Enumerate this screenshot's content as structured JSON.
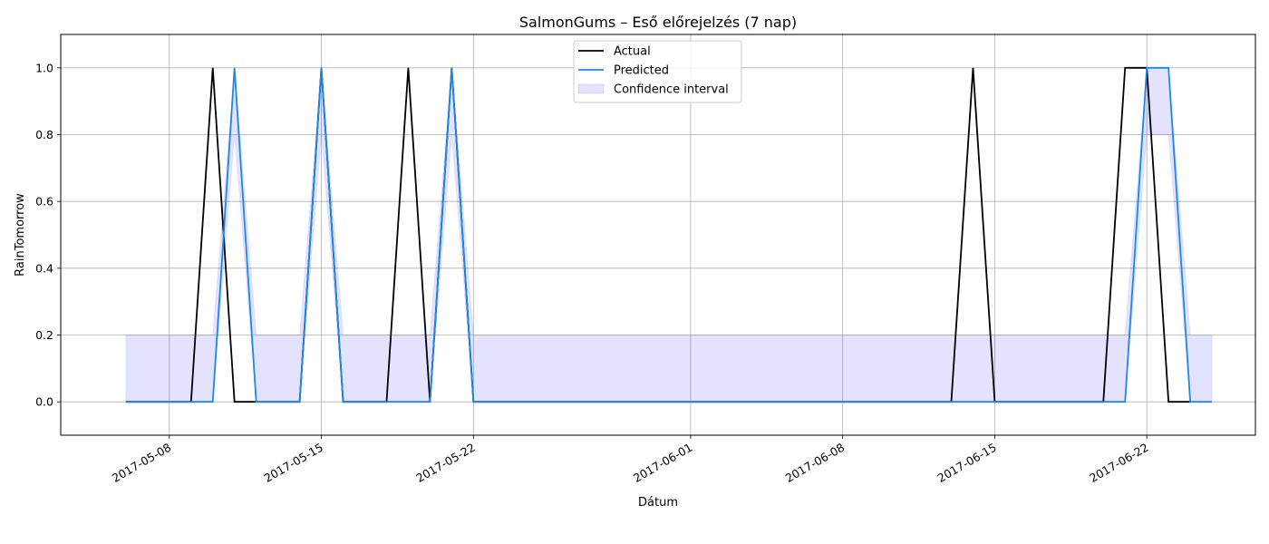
{
  "chart_data": {
    "type": "line",
    "title": "SalmonGums – Eső előrejelzés (7 nap)",
    "xlabel": "Dátum",
    "ylabel": "RainTomorrow",
    "x_axis": {
      "range": [
        "2017-05-03",
        "2017-06-27"
      ],
      "ticks": [
        "2017-05-08",
        "2017-05-15",
        "2017-05-22",
        "2017-06-01",
        "2017-06-08",
        "2017-06-15",
        "2017-06-22"
      ]
    },
    "y_axis": {
      "range": [
        -0.1,
        1.1
      ],
      "ticks": [
        0.0,
        0.2,
        0.4,
        0.6,
        0.8,
        1.0
      ],
      "tick_labels": [
        "0.0",
        "0.2",
        "0.4",
        "0.6",
        "0.8",
        "1.0"
      ]
    },
    "grid": true,
    "legend": {
      "position": "top-center"
    },
    "series": [
      {
        "name": "Actual",
        "kind": "line",
        "color": "#000000",
        "points": [
          {
            "x": "2017-05-06",
            "y": 0
          },
          {
            "x": "2017-05-07",
            "y": 0
          },
          {
            "x": "2017-05-08",
            "y": 0
          },
          {
            "x": "2017-05-09",
            "y": 0
          },
          {
            "x": "2017-05-10",
            "y": 1
          },
          {
            "x": "2017-05-11",
            "y": 0
          },
          {
            "x": "2017-05-12",
            "y": 0
          },
          {
            "x": "2017-05-13",
            "y": 0
          },
          {
            "x": "2017-05-14",
            "y": 0
          },
          {
            "x": "2017-05-15",
            "y": 1
          },
          {
            "x": "2017-05-16",
            "y": 0
          },
          {
            "x": "2017-05-17",
            "y": 0
          },
          {
            "x": "2017-05-18",
            "y": 0
          },
          {
            "x": "2017-05-19",
            "y": 1
          },
          {
            "x": "2017-05-20",
            "y": 0
          },
          {
            "x": "2017-05-21",
            "y": 1
          },
          {
            "x": "2017-05-22",
            "y": 0
          },
          {
            "x": "2017-06-12",
            "y": 0
          },
          {
            "x": "2017-06-13",
            "y": 0
          },
          {
            "x": "2017-06-14",
            "y": 1
          },
          {
            "x": "2017-06-15",
            "y": 0
          },
          {
            "x": "2017-06-19",
            "y": 0
          },
          {
            "x": "2017-06-20",
            "y": 0
          },
          {
            "x": "2017-06-21",
            "y": 1
          },
          {
            "x": "2017-06-22",
            "y": 1
          },
          {
            "x": "2017-06-23",
            "y": 0
          },
          {
            "x": "2017-06-24",
            "y": 0
          }
        ]
      },
      {
        "name": "Predicted",
        "kind": "line",
        "color": "#1e88e5",
        "points": [
          {
            "x": "2017-05-06",
            "y": 0
          },
          {
            "x": "2017-05-07",
            "y": 0
          },
          {
            "x": "2017-05-08",
            "y": 0
          },
          {
            "x": "2017-05-09",
            "y": 0
          },
          {
            "x": "2017-05-10",
            "y": 0
          },
          {
            "x": "2017-05-11",
            "y": 1
          },
          {
            "x": "2017-05-12",
            "y": 0
          },
          {
            "x": "2017-05-13",
            "y": 0
          },
          {
            "x": "2017-05-14",
            "y": 0
          },
          {
            "x": "2017-05-15",
            "y": 1
          },
          {
            "x": "2017-05-16",
            "y": 0
          },
          {
            "x": "2017-05-17",
            "y": 0
          },
          {
            "x": "2017-05-18",
            "y": 0
          },
          {
            "x": "2017-05-19",
            "y": 0
          },
          {
            "x": "2017-05-20",
            "y": 0
          },
          {
            "x": "2017-05-21",
            "y": 1
          },
          {
            "x": "2017-05-22",
            "y": 0
          },
          {
            "x": "2017-06-21",
            "y": 0
          },
          {
            "x": "2017-06-22",
            "y": 1
          },
          {
            "x": "2017-06-23",
            "y": 1
          },
          {
            "x": "2017-06-24",
            "y": 0
          },
          {
            "x": "2017-06-25",
            "y": 0
          }
        ]
      },
      {
        "name": "Confidence interval",
        "kind": "band",
        "color": "#0000ff",
        "opacity": 0.11,
        "points": [
          {
            "x": "2017-05-06",
            "lower": 0,
            "upper": 0.2
          },
          {
            "x": "2017-05-10",
            "lower": 0,
            "upper": 0.2
          },
          {
            "x": "2017-05-11",
            "lower": 0.8,
            "upper": 1
          },
          {
            "x": "2017-05-12",
            "lower": 0,
            "upper": 0.2
          },
          {
            "x": "2017-05-14",
            "lower": 0,
            "upper": 0.2
          },
          {
            "x": "2017-05-15",
            "lower": 0.8,
            "upper": 1
          },
          {
            "x": "2017-05-16",
            "lower": 0,
            "upper": 0.2
          },
          {
            "x": "2017-05-20",
            "lower": 0,
            "upper": 0.2
          },
          {
            "x": "2017-05-21",
            "lower": 0.8,
            "upper": 1
          },
          {
            "x": "2017-05-22",
            "lower": 0,
            "upper": 0.2
          },
          {
            "x": "2017-06-21",
            "lower": 0,
            "upper": 0.2
          },
          {
            "x": "2017-06-22",
            "lower": 0.8,
            "upper": 1
          },
          {
            "x": "2017-06-23",
            "lower": 0.8,
            "upper": 1
          },
          {
            "x": "2017-06-24",
            "lower": 0,
            "upper": 0.2
          },
          {
            "x": "2017-06-25",
            "lower": 0,
            "upper": 0.2
          }
        ]
      }
    ]
  }
}
